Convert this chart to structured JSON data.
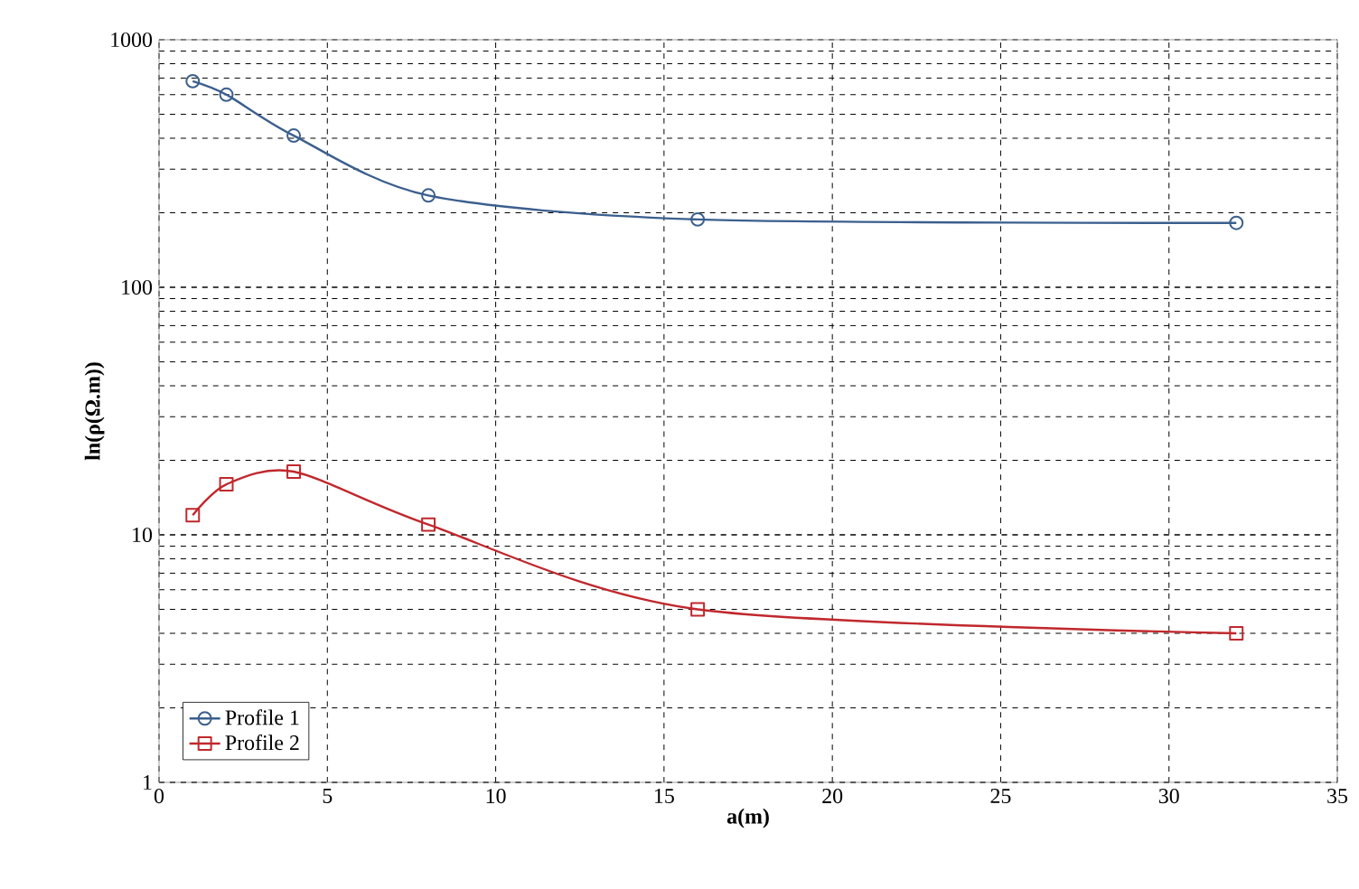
{
  "chart_data": {
    "type": "line",
    "xlabel": "a(m)",
    "ylabel": "ln(ρ(Ω.m))",
    "log": "y",
    "grid": true,
    "legend": "bottom left",
    "line_style": "solid",
    "xlim": [
      0,
      35
    ],
    "xticks": [
      0,
      5,
      10,
      15,
      20,
      25,
      30,
      35
    ],
    "ylim": [
      1,
      1000
    ],
    "yticks": [
      1,
      10,
      100,
      1000
    ],
    "series": [
      {
        "name": "Profile 1",
        "color": "#3b5f8e",
        "marker": "circle",
        "x": [
          1,
          2,
          4,
          8,
          16,
          32
        ],
        "values": [
          680,
          600,
          410,
          235,
          188,
          182
        ]
      },
      {
        "name": "Profile 2",
        "color": "#c0282d",
        "marker": "square",
        "x": [
          1,
          2,
          4,
          8,
          16,
          32
        ],
        "values": [
          12,
          16,
          18,
          11,
          5,
          4
        ]
      }
    ]
  }
}
